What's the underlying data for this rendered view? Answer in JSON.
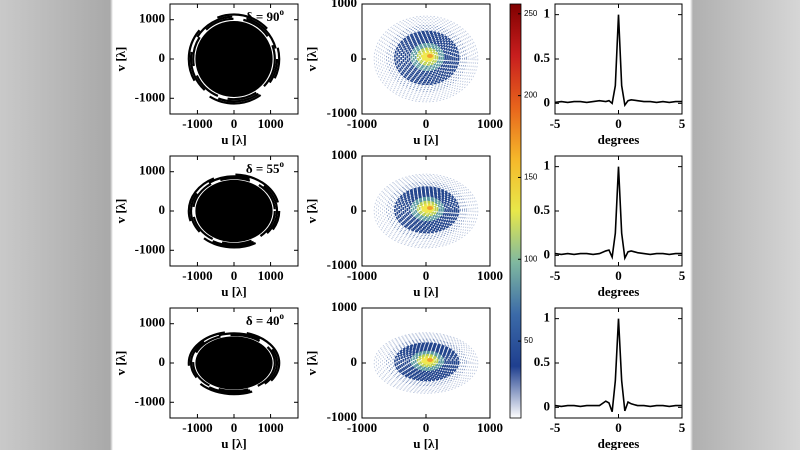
{
  "chart_data": [
    {
      "type": "uv-coverage",
      "xlabel": "u [λ]",
      "ylabel": "v [λ]",
      "xlim": [
        -1750,
        1750
      ],
      "ylim": [
        -1400,
        1400
      ],
      "xticks": [
        -1000,
        0,
        1000
      ],
      "yticks": [
        -1000,
        0,
        1000
      ],
      "annotation": {
        "text": "δ = 90",
        "superscript": "o"
      },
      "u_extent": 1200,
      "v_extent": 1100,
      "color": "#000000"
    },
    {
      "type": "uv-density",
      "xlabel": "u [λ]",
      "ylabel": "v [λ]",
      "xlim": [
        -1000,
        1000
      ],
      "ylim": [
        -1000,
        1000
      ],
      "xticks": [
        -1000,
        0,
        1000
      ],
      "yticks": [
        -1000,
        0,
        1000
      ],
      "u_extent": 810,
      "v_extent": 780
    },
    {
      "type": "line",
      "xlabel": "degrees",
      "xlim": [
        -5,
        5
      ],
      "ylim": [
        -0.12,
        1.12
      ],
      "xticks": [
        -5,
        0,
        5
      ],
      "yticks": [
        0,
        0.5,
        1
      ],
      "color": "#000000",
      "x": [
        -5,
        -4.5,
        -4,
        -3.5,
        -3,
        -2.5,
        -2,
        -1.5,
        -1,
        -0.75,
        -0.5,
        -0.25,
        0,
        0.25,
        0.5,
        0.75,
        1,
        1.5,
        2,
        2.5,
        3,
        3.5,
        4,
        4.5,
        5
      ],
      "values": [
        0.01,
        0.02,
        0.01,
        0.02,
        0.02,
        0.01,
        0.02,
        0.03,
        0.02,
        0.03,
        0.0,
        0.2,
        1,
        0.2,
        -0.02,
        0.03,
        0.04,
        0.03,
        0.02,
        0.02,
        0.01,
        0.02,
        0.01,
        0.02,
        0.02
      ]
    },
    {
      "type": "uv-coverage",
      "xlabel": "u [λ]",
      "ylabel": "v [λ]",
      "xlim": [
        -1750,
        1750
      ],
      "ylim": [
        -1400,
        1400
      ],
      "xticks": [
        -1000,
        0,
        1000
      ],
      "yticks": [
        -1000,
        0,
        1000
      ],
      "annotation": {
        "text": "δ = 55",
        "superscript": "o"
      },
      "u_extent": 1200,
      "v_extent": 900,
      "color": "#000000"
    },
    {
      "type": "uv-density",
      "xlabel": "u [λ]",
      "ylabel": "v [λ]",
      "xlim": [
        -1000,
        1000
      ],
      "ylim": [
        -1000,
        1000
      ],
      "xticks": [
        -1000,
        0,
        1000
      ],
      "yticks": [
        -1000,
        0,
        1000
      ],
      "u_extent": 810,
      "v_extent": 670
    },
    {
      "type": "line",
      "xlabel": "degrees",
      "xlim": [
        -5,
        5
      ],
      "ylim": [
        -0.12,
        1.12
      ],
      "xticks": [
        -5,
        0,
        5
      ],
      "yticks": [
        0,
        0.5,
        1
      ],
      "color": "#000000",
      "x": [
        -5,
        -4.5,
        -4,
        -3.5,
        -3,
        -2.5,
        -2,
        -1.5,
        -1,
        -0.75,
        -0.5,
        -0.25,
        0,
        0.25,
        0.5,
        0.75,
        1,
        1.5,
        2,
        2.5,
        3,
        3.5,
        4,
        4.5,
        5
      ],
      "values": [
        0.02,
        0.01,
        0.02,
        0.01,
        0.02,
        0.02,
        0.01,
        0.02,
        0.05,
        0.06,
        -0.02,
        0.25,
        1,
        0.25,
        -0.03,
        0.04,
        0.05,
        0.03,
        0.02,
        0.01,
        0.02,
        0.02,
        0.01,
        0.02,
        0.02
      ]
    },
    {
      "type": "uv-coverage",
      "xlabel": "u [λ]",
      "ylabel": "v [λ]",
      "xlim": [
        -1750,
        1750
      ],
      "ylim": [
        -1400,
        1400
      ],
      "xticks": [
        -1000,
        0,
        1000
      ],
      "yticks": [
        -1000,
        0,
        1000
      ],
      "annotation": {
        "text": "δ = 40",
        "superscript": "o"
      },
      "u_extent": 1200,
      "v_extent": 770,
      "color": "#000000"
    },
    {
      "type": "uv-density",
      "xlabel": "u [λ]",
      "ylabel": "v [λ]",
      "xlim": [
        -1000,
        1000
      ],
      "ylim": [
        -1000,
        1000
      ],
      "xticks": [
        -1000,
        0,
        1000
      ],
      "yticks": [
        -1000,
        0,
        1000
      ],
      "u_extent": 810,
      "v_extent": 550
    },
    {
      "type": "line",
      "xlabel": "degrees",
      "xlim": [
        -5,
        5
      ],
      "ylim": [
        -0.12,
        1.12
      ],
      "xticks": [
        -5,
        0,
        5
      ],
      "yticks": [
        0,
        0.5,
        1
      ],
      "color": "#000000",
      "x": [
        -5,
        -4.5,
        -4,
        -3.5,
        -3,
        -2.5,
        -2,
        -1.5,
        -1,
        -0.75,
        -0.5,
        -0.25,
        0,
        0.25,
        0.5,
        0.75,
        1,
        1.5,
        2,
        2.5,
        3,
        3.5,
        4,
        4.5,
        5
      ],
      "values": [
        0.02,
        0.01,
        0.02,
        0.02,
        0.01,
        0.02,
        0.02,
        0.02,
        0.07,
        0.05,
        -0.05,
        0.3,
        1,
        0.3,
        -0.04,
        0.06,
        0.04,
        0.02,
        0.02,
        0.01,
        0.02,
        0.02,
        0.01,
        0.02,
        0.02
      ]
    },
    {
      "type": "colorbar",
      "ylim": [
        3,
        256
      ],
      "yticks": [
        50,
        100,
        150,
        200,
        250
      ],
      "colors": [
        "#ffffff",
        "#1f3f8f",
        "#3b6aa8",
        "#7fb8a0",
        "#e8e84a",
        "#f5b82a",
        "#e8641c",
        "#c81e1e",
        "#800000"
      ]
    }
  ]
}
